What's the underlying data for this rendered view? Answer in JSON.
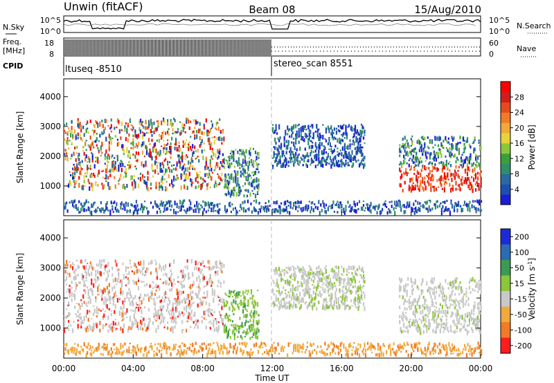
{
  "header": {
    "station": "Unwin (fitACF)",
    "beam": "Beam 08",
    "date": "15/Aug/2010"
  },
  "noise_panel": {
    "left_label": "N.Sky",
    "right_label": "N.Search",
    "left_ticks": [
      "10^5",
      "10^0"
    ],
    "right_ticks": [
      "10^5",
      "10^0"
    ]
  },
  "freq_panel": {
    "left_label_1": "Freq.",
    "left_label_2": "[MHz]",
    "left_ticks": [
      "18",
      "8"
    ],
    "right_label": "Nave",
    "right_ticks": [
      "60",
      "0"
    ]
  },
  "cpid": {
    "label": "CPID",
    "segments": [
      {
        "start_hour": 0,
        "end_hour": 12,
        "name": "ltuseq -8510"
      },
      {
        "start_hour": 12,
        "end_hour": 24,
        "name": "stereo_scan 8551"
      }
    ]
  },
  "chart_data": [
    {
      "type": "heatmap",
      "title": "",
      "xlabel": "Time UT",
      "ylabel": "Slant Range [km]",
      "xlim": [
        0,
        24
      ],
      "ylim": [
        0,
        4600
      ],
      "y_ticks": [
        1000,
        2000,
        3000,
        4000
      ],
      "colorbar": {
        "label": "Power [dB]",
        "ticks": [
          4,
          8,
          12,
          16,
          20,
          24,
          28
        ],
        "range": [
          0,
          32
        ],
        "colors": [
          "#1c1cd9",
          "#1d4fb2",
          "#2b6aa0",
          "#2f8f6a",
          "#3aa03a",
          "#8cc63a",
          "#e6d43a",
          "#f2a93b",
          "#f27b26",
          "#e64a1c",
          "#d41c1c",
          "#ff0000"
        ]
      },
      "scatter_regions": [
        {
          "t_start": 0.0,
          "t_end": 9.2,
          "r_low": 950,
          "r_high": 3300,
          "level": "mixed-high"
        },
        {
          "t_start": 9.2,
          "t_end": 11.2,
          "r_low": 700,
          "r_high": 2300,
          "level": "mixed-low"
        },
        {
          "t_start": 12.0,
          "t_end": 17.3,
          "r_low": 1700,
          "r_high": 3100,
          "level": "low"
        },
        {
          "t_start": 19.3,
          "t_end": 24.0,
          "r_low": 900,
          "r_high": 2700,
          "level": "high"
        },
        {
          "t_start": 0.0,
          "t_end": 24.0,
          "r_low": 150,
          "r_high": 550,
          "level": "ground"
        }
      ]
    },
    {
      "type": "heatmap",
      "title": "",
      "xlabel": "Time UT",
      "ylabel": "Slant Range [km]",
      "xlim": [
        0,
        24
      ],
      "ylim": [
        0,
        4600
      ],
      "y_ticks": [
        1000,
        2000,
        3000,
        4000
      ],
      "x_ticks": [
        "00:00",
        "04:00",
        "08:00",
        "12:00",
        "16:00",
        "20:00",
        "00:00"
      ],
      "colorbar": {
        "label": "Velocity [m s^-1]",
        "ticks": [
          "200",
          "100",
          "50",
          "15",
          "-15",
          "-50",
          "-100",
          "-200"
        ],
        "colors": [
          "#1c2ad9",
          "#2c6ab3",
          "#3c9a52",
          "#8cc63a",
          "#c8c8c8",
          "#f2a93b",
          "#f27b26",
          "#ff1c1c"
        ]
      },
      "scatter_regions": [
        {
          "t_start": 0.0,
          "t_end": 9.2,
          "r_low": 950,
          "r_high": 3300,
          "level": "mostly-grey"
        },
        {
          "t_start": 9.2,
          "t_end": 11.2,
          "r_low": 700,
          "r_high": 2300,
          "level": "green"
        },
        {
          "t_start": 12.0,
          "t_end": 17.3,
          "r_low": 1700,
          "r_high": 3100,
          "level": "grey-green"
        },
        {
          "t_start": 19.3,
          "t_end": 24.0,
          "r_low": 900,
          "r_high": 2700,
          "level": "grey"
        },
        {
          "t_start": 0.0,
          "t_end": 24.0,
          "r_low": 150,
          "r_high": 550,
          "level": "orange"
        }
      ]
    }
  ]
}
